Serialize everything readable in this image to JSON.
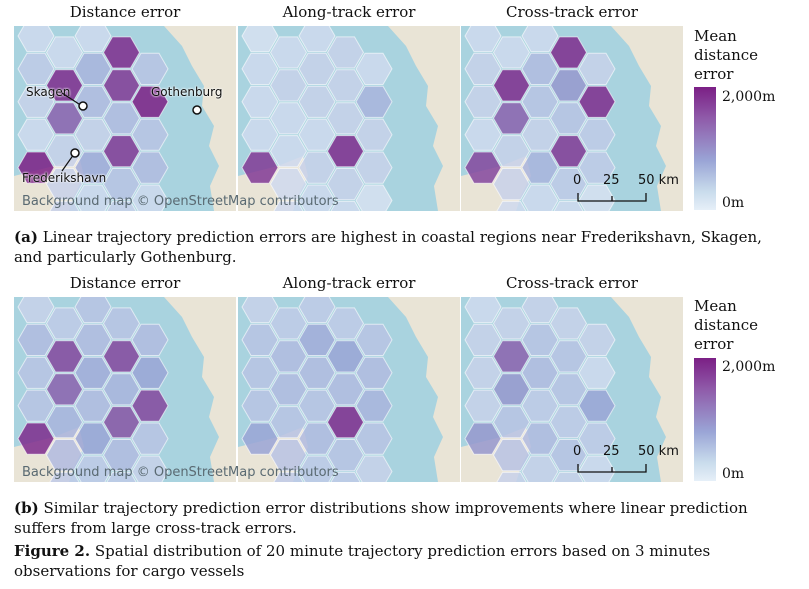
{
  "panel_titles": [
    "Distance error",
    "Along-track error",
    "Cross-track error"
  ],
  "legend": {
    "title_lines": [
      "Mean",
      "distance",
      "error"
    ],
    "max_label": "2,000m",
    "min_label": "0m",
    "colors": {
      "high": "#7b1f85",
      "mid": "#9aa5d6",
      "low": "#e6eff8"
    }
  },
  "map_credit": "Background map © OpenStreetMap contributors",
  "places": {
    "skagen": "Skagen",
    "gothenburg": "Gothenburg",
    "frederikshavn": "Frederikshavn"
  },
  "scale": {
    "labels": [
      "0",
      "25",
      "50 km"
    ]
  },
  "captions": {
    "a_label": "(a)",
    "a_text": "Linear trajectory prediction errors are highest in coastal regions near Frederikshavn, Skagen, and particularly Gothenburg.",
    "b_label": "(b)",
    "b_text": "Similar trajectory prediction error distributions show improvements where linear prediction suffers from large cross-track errors.",
    "fig_label": "Figure 2.",
    "fig_text": "Spatial distribution of 20 minute trajectory prediction errors based on 3 minutes observations for cargo vessels"
  },
  "chart_data": [
    {
      "type": "heatmap",
      "title": "Distance error",
      "row": "a",
      "value_unit": "normalized 0–1 of 2,000m",
      "cells": [
        {
          "col": 0,
          "row": 0,
          "value": 0.15
        },
        {
          "col": 1,
          "row": 0,
          "value": 0.15
        },
        {
          "col": 2,
          "row": 0,
          "value": 0.15
        },
        {
          "col": 3,
          "row": 0,
          "value": 0.95
        },
        {
          "col": 0,
          "row": 1,
          "value": 0.25
        },
        {
          "col": 1,
          "row": 1,
          "value": 0.95
        },
        {
          "col": 2,
          "row": 1,
          "value": 0.4
        },
        {
          "col": 3,
          "row": 1,
          "value": 0.9
        },
        {
          "col": 4,
          "row": 1,
          "value": 0.3
        },
        {
          "col": 0,
          "row": 2,
          "value": 0.2
        },
        {
          "col": 1,
          "row": 2,
          "value": 0.75
        },
        {
          "col": 2,
          "row": 2,
          "value": 0.35
        },
        {
          "col": 3,
          "row": 2,
          "value": 0.35
        },
        {
          "col": 4,
          "row": 2,
          "value": 1.0
        },
        {
          "col": 0,
          "row": 3,
          "value": 0.15
        },
        {
          "col": 1,
          "row": 3,
          "value": 0.2
        },
        {
          "col": 2,
          "row": 3,
          "value": 0.2
        },
        {
          "col": 3,
          "row": 3,
          "value": 0.9
        },
        {
          "col": 4,
          "row": 3,
          "value": 0.3
        },
        {
          "col": 0,
          "row": 4,
          "value": 1.0
        },
        {
          "col": 1,
          "row": 4,
          "value": 0.2
        },
        {
          "col": 2,
          "row": 4,
          "value": 0.45
        },
        {
          "col": 3,
          "row": 4,
          "value": 0.3
        },
        {
          "col": 4,
          "row": 4,
          "value": 0.35
        },
        {
          "col": 1,
          "row": 5,
          "value": 0.2
        },
        {
          "col": 2,
          "row": 5,
          "value": 0.15
        },
        {
          "col": 3,
          "row": 5,
          "value": 0.2
        },
        {
          "col": 4,
          "row": 5,
          "value": 0.15
        }
      ]
    },
    {
      "type": "heatmap",
      "title": "Along-track error",
      "row": "a",
      "value_unit": "normalized 0–1 of 2,000m",
      "cells": [
        {
          "col": 0,
          "row": 0,
          "value": 0.1
        },
        {
          "col": 1,
          "row": 0,
          "value": 0.15
        },
        {
          "col": 2,
          "row": 0,
          "value": 0.15
        },
        {
          "col": 3,
          "row": 0,
          "value": 0.2
        },
        {
          "col": 0,
          "row": 1,
          "value": 0.15
        },
        {
          "col": 1,
          "row": 1,
          "value": 0.2
        },
        {
          "col": 2,
          "row": 1,
          "value": 0.2
        },
        {
          "col": 3,
          "row": 1,
          "value": 0.2
        },
        {
          "col": 4,
          "row": 1,
          "value": 0.15
        },
        {
          "col": 0,
          "row": 2,
          "value": 0.15
        },
        {
          "col": 1,
          "row": 2,
          "value": 0.15
        },
        {
          "col": 2,
          "row": 2,
          "value": 0.2
        },
        {
          "col": 3,
          "row": 2,
          "value": 0.2
        },
        {
          "col": 4,
          "row": 2,
          "value": 0.4
        },
        {
          "col": 0,
          "row": 3,
          "value": 0.15
        },
        {
          "col": 1,
          "row": 3,
          "value": 0.15
        },
        {
          "col": 2,
          "row": 3,
          "value": 0.15
        },
        {
          "col": 3,
          "row": 3,
          "value": 0.95
        },
        {
          "col": 4,
          "row": 3,
          "value": 0.2
        },
        {
          "col": 0,
          "row": 4,
          "value": 0.9
        },
        {
          "col": 1,
          "row": 4,
          "value": 0.15
        },
        {
          "col": 2,
          "row": 4,
          "value": 0.2
        },
        {
          "col": 3,
          "row": 4,
          "value": 0.2
        },
        {
          "col": 4,
          "row": 4,
          "value": 0.2
        },
        {
          "col": 1,
          "row": 5,
          "value": 0.15
        },
        {
          "col": 2,
          "row": 5,
          "value": 0.15
        },
        {
          "col": 3,
          "row": 5,
          "value": 0.15
        },
        {
          "col": 4,
          "row": 5,
          "value": 0.1
        }
      ]
    },
    {
      "type": "heatmap",
      "title": "Cross-track error",
      "row": "a",
      "value_unit": "normalized 0–1 of 2,000m",
      "cells": [
        {
          "col": 0,
          "row": 0,
          "value": 0.15
        },
        {
          "col": 1,
          "row": 0,
          "value": 0.15
        },
        {
          "col": 2,
          "row": 0,
          "value": 0.15
        },
        {
          "col": 3,
          "row": 0,
          "value": 0.95
        },
        {
          "col": 0,
          "row": 1,
          "value": 0.2
        },
        {
          "col": 1,
          "row": 1,
          "value": 0.95
        },
        {
          "col": 2,
          "row": 1,
          "value": 0.35
        },
        {
          "col": 3,
          "row": 1,
          "value": 0.55
        },
        {
          "col": 4,
          "row": 1,
          "value": 0.2
        },
        {
          "col": 0,
          "row": 2,
          "value": 0.2
        },
        {
          "col": 1,
          "row": 2,
          "value": 0.75
        },
        {
          "col": 2,
          "row": 2,
          "value": 0.3
        },
        {
          "col": 3,
          "row": 2,
          "value": 0.3
        },
        {
          "col": 4,
          "row": 2,
          "value": 0.95
        },
        {
          "col": 0,
          "row": 3,
          "value": 0.15
        },
        {
          "col": 1,
          "row": 3,
          "value": 0.2
        },
        {
          "col": 2,
          "row": 3,
          "value": 0.2
        },
        {
          "col": 3,
          "row": 3,
          "value": 0.9
        },
        {
          "col": 4,
          "row": 3,
          "value": 0.25
        },
        {
          "col": 0,
          "row": 4,
          "value": 0.85
        },
        {
          "col": 1,
          "row": 4,
          "value": 0.2
        },
        {
          "col": 2,
          "row": 4,
          "value": 0.4
        },
        {
          "col": 3,
          "row": 4,
          "value": 0.25
        },
        {
          "col": 4,
          "row": 4,
          "value": 0.25
        },
        {
          "col": 1,
          "row": 5,
          "value": 0.15
        },
        {
          "col": 2,
          "row": 5,
          "value": 0.15
        },
        {
          "col": 3,
          "row": 5,
          "value": 0.15
        },
        {
          "col": 4,
          "row": 5,
          "value": 0.1
        }
      ]
    },
    {
      "type": "heatmap",
      "title": "Distance error",
      "row": "b",
      "value_unit": "normalized 0–1 of 2,000m",
      "cells": [
        {
          "col": 0,
          "row": 0,
          "value": 0.2
        },
        {
          "col": 1,
          "row": 0,
          "value": 0.25
        },
        {
          "col": 2,
          "row": 0,
          "value": 0.3
        },
        {
          "col": 3,
          "row": 0,
          "value": 0.3
        },
        {
          "col": 0,
          "row": 1,
          "value": 0.35
        },
        {
          "col": 1,
          "row": 1,
          "value": 0.85
        },
        {
          "col": 2,
          "row": 1,
          "value": 0.35
        },
        {
          "col": 3,
          "row": 1,
          "value": 0.85
        },
        {
          "col": 4,
          "row": 1,
          "value": 0.35
        },
        {
          "col": 0,
          "row": 2,
          "value": 0.3
        },
        {
          "col": 1,
          "row": 2,
          "value": 0.75
        },
        {
          "col": 2,
          "row": 2,
          "value": 0.45
        },
        {
          "col": 3,
          "row": 2,
          "value": 0.4
        },
        {
          "col": 4,
          "row": 2,
          "value": 0.5
        },
        {
          "col": 0,
          "row": 3,
          "value": 0.3
        },
        {
          "col": 1,
          "row": 3,
          "value": 0.4
        },
        {
          "col": 2,
          "row": 3,
          "value": 0.35
        },
        {
          "col": 3,
          "row": 3,
          "value": 0.8
        },
        {
          "col": 4,
          "row": 3,
          "value": 0.85
        },
        {
          "col": 0,
          "row": 4,
          "value": 0.95
        },
        {
          "col": 1,
          "row": 4,
          "value": 0.35
        },
        {
          "col": 2,
          "row": 4,
          "value": 0.5
        },
        {
          "col": 3,
          "row": 4,
          "value": 0.35
        },
        {
          "col": 4,
          "row": 4,
          "value": 0.3
        },
        {
          "col": 1,
          "row": 5,
          "value": 0.25
        },
        {
          "col": 2,
          "row": 5,
          "value": 0.25
        },
        {
          "col": 3,
          "row": 5,
          "value": 0.25
        },
        {
          "col": 4,
          "row": 5,
          "value": 0.2
        }
      ]
    },
    {
      "type": "heatmap",
      "title": "Along-track error",
      "row": "b",
      "value_unit": "normalized 0–1 of 2,000m",
      "cells": [
        {
          "col": 0,
          "row": 0,
          "value": 0.2
        },
        {
          "col": 1,
          "row": 0,
          "value": 0.25
        },
        {
          "col": 2,
          "row": 0,
          "value": 0.25
        },
        {
          "col": 3,
          "row": 0,
          "value": 0.25
        },
        {
          "col": 0,
          "row": 1,
          "value": 0.3
        },
        {
          "col": 1,
          "row": 1,
          "value": 0.35
        },
        {
          "col": 2,
          "row": 1,
          "value": 0.45
        },
        {
          "col": 3,
          "row": 1,
          "value": 0.5
        },
        {
          "col": 4,
          "row": 1,
          "value": 0.3
        },
        {
          "col": 0,
          "row": 2,
          "value": 0.3
        },
        {
          "col": 1,
          "row": 2,
          "value": 0.35
        },
        {
          "col": 2,
          "row": 2,
          "value": 0.35
        },
        {
          "col": 3,
          "row": 2,
          "value": 0.35
        },
        {
          "col": 4,
          "row": 2,
          "value": 0.35
        },
        {
          "col": 0,
          "row": 3,
          "value": 0.3
        },
        {
          "col": 1,
          "row": 3,
          "value": 0.3
        },
        {
          "col": 2,
          "row": 3,
          "value": 0.3
        },
        {
          "col": 3,
          "row": 3,
          "value": 0.95
        },
        {
          "col": 4,
          "row": 3,
          "value": 0.4
        },
        {
          "col": 0,
          "row": 4,
          "value": 0.5
        },
        {
          "col": 1,
          "row": 4,
          "value": 0.3
        },
        {
          "col": 2,
          "row": 4,
          "value": 0.35
        },
        {
          "col": 3,
          "row": 4,
          "value": 0.3
        },
        {
          "col": 4,
          "row": 4,
          "value": 0.3
        },
        {
          "col": 1,
          "row": 5,
          "value": 0.25
        },
        {
          "col": 2,
          "row": 5,
          "value": 0.25
        },
        {
          "col": 3,
          "row": 5,
          "value": 0.25
        },
        {
          "col": 4,
          "row": 5,
          "value": 0.2
        }
      ]
    },
    {
      "type": "heatmap",
      "title": "Cross-track error",
      "row": "b",
      "value_unit": "normalized 0–1 of 2,000m",
      "cells": [
        {
          "col": 0,
          "row": 0,
          "value": 0.15
        },
        {
          "col": 1,
          "row": 0,
          "value": 0.2
        },
        {
          "col": 2,
          "row": 0,
          "value": 0.2
        },
        {
          "col": 3,
          "row": 0,
          "value": 0.2
        },
        {
          "col": 0,
          "row": 1,
          "value": 0.2
        },
        {
          "col": 1,
          "row": 1,
          "value": 0.75
        },
        {
          "col": 2,
          "row": 1,
          "value": 0.3
        },
        {
          "col": 3,
          "row": 1,
          "value": 0.3
        },
        {
          "col": 4,
          "row": 1,
          "value": 0.2
        },
        {
          "col": 0,
          "row": 2,
          "value": 0.2
        },
        {
          "col": 1,
          "row": 2,
          "value": 0.55
        },
        {
          "col": 2,
          "row": 2,
          "value": 0.35
        },
        {
          "col": 3,
          "row": 2,
          "value": 0.3
        },
        {
          "col": 4,
          "row": 2,
          "value": 0.15
        },
        {
          "col": 0,
          "row": 3,
          "value": 0.2
        },
        {
          "col": 1,
          "row": 3,
          "value": 0.3
        },
        {
          "col": 2,
          "row": 3,
          "value": 0.25
        },
        {
          "col": 3,
          "row": 3,
          "value": 0.25
        },
        {
          "col": 4,
          "row": 3,
          "value": 0.5
        },
        {
          "col": 0,
          "row": 4,
          "value": 0.55
        },
        {
          "col": 1,
          "row": 4,
          "value": 0.3
        },
        {
          "col": 2,
          "row": 4,
          "value": 0.35
        },
        {
          "col": 3,
          "row": 4,
          "value": 0.3
        },
        {
          "col": 4,
          "row": 4,
          "value": 0.25
        },
        {
          "col": 1,
          "row": 5,
          "value": 0.2
        },
        {
          "col": 2,
          "row": 5,
          "value": 0.2
        },
        {
          "col": 3,
          "row": 5,
          "value": 0.2
        },
        {
          "col": 4,
          "row": 5,
          "value": 0.15
        }
      ]
    }
  ]
}
